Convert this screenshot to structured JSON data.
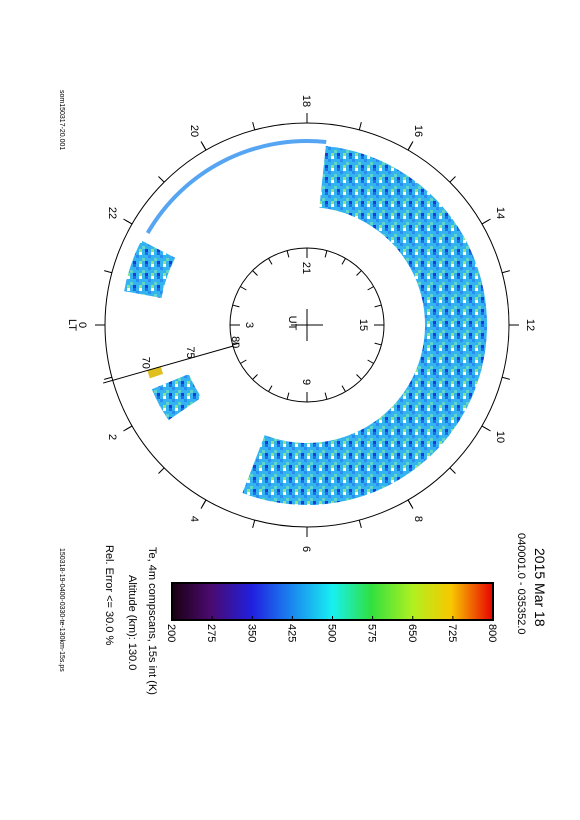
{
  "title": "2015 Mar 18",
  "time_range": "040001.0 - 035352.0",
  "file_left": "som150317-20.001",
  "file_right": "150318-19-0400-0330-te-130km-15s.ps",
  "lt_label": "LT",
  "lt_ticks": [
    0,
    2,
    4,
    6,
    8,
    10,
    12,
    14,
    16,
    18,
    20,
    22
  ],
  "ut_label": "UT",
  "ut_ticks": [
    3,
    9,
    15,
    21
  ],
  "lat_ticks": [
    80,
    75,
    70
  ],
  "colorbar": {
    "ticks": [
      200,
      275,
      350,
      425,
      500,
      575,
      650,
      725,
      800
    ],
    "label": "Te, 4m compscans, 15s int (K)",
    "altitude": "Altitude (km): 130.0",
    "error": "Rel. Error <= 30.0 %"
  }
}
